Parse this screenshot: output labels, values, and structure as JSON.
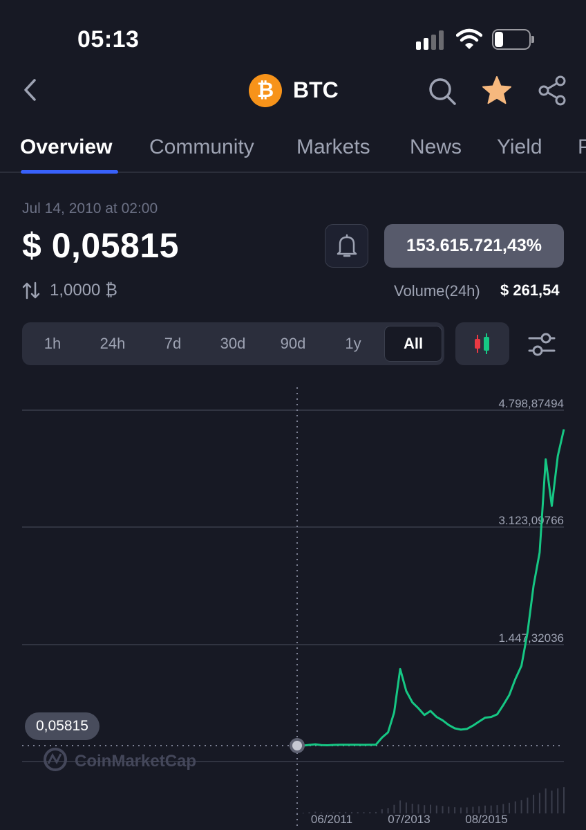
{
  "status_bar": {
    "time": "05:13"
  },
  "header": {
    "coin_symbol": "BTC",
    "coin_glyph": "₿"
  },
  "tabs": [
    "Overview",
    "Community",
    "Markets",
    "News",
    "Yield",
    "P"
  ],
  "price_info": {
    "date": "Jul 14, 2010 at 02:00",
    "price": "$ 0,05815",
    "change": "153.615.721,43%",
    "conversion": "1,0000 ₿",
    "volume_label": "Volume(24h)",
    "volume_value": "$ 261,54"
  },
  "ranges": [
    "1h",
    "24h",
    "7d",
    "30d",
    "90d",
    "1y",
    "All"
  ],
  "selected_range": "All",
  "colors": {
    "background": "#171924",
    "accent": "#3861fb",
    "line": "#16c784",
    "btc": "#f7931a"
  },
  "chart_data": {
    "type": "line",
    "y_ticks": [
      "4.798,87494",
      "3.123,09766",
      "1.447,32036"
    ],
    "x_ticks": [
      "06/2011",
      "07/2013",
      "08/2015"
    ],
    "current_label": "0,05815",
    "watermark": "CoinMarketCap",
    "grid": true,
    "series": [
      {
        "values": [
          0.06,
          0.06,
          10,
          20,
          8,
          5,
          10,
          13,
          14,
          12,
          12,
          11,
          13,
          15,
          120,
          200,
          500,
          1150,
          820,
          650,
          560,
          460,
          520,
          430,
          380,
          310,
          260,
          240,
          250,
          300,
          360,
          420,
          430,
          470,
          610,
          760,
          1000,
          1200,
          1700,
          2400,
          2900,
          4300,
          3600,
          4350,
          4750
        ]
      }
    ]
  }
}
